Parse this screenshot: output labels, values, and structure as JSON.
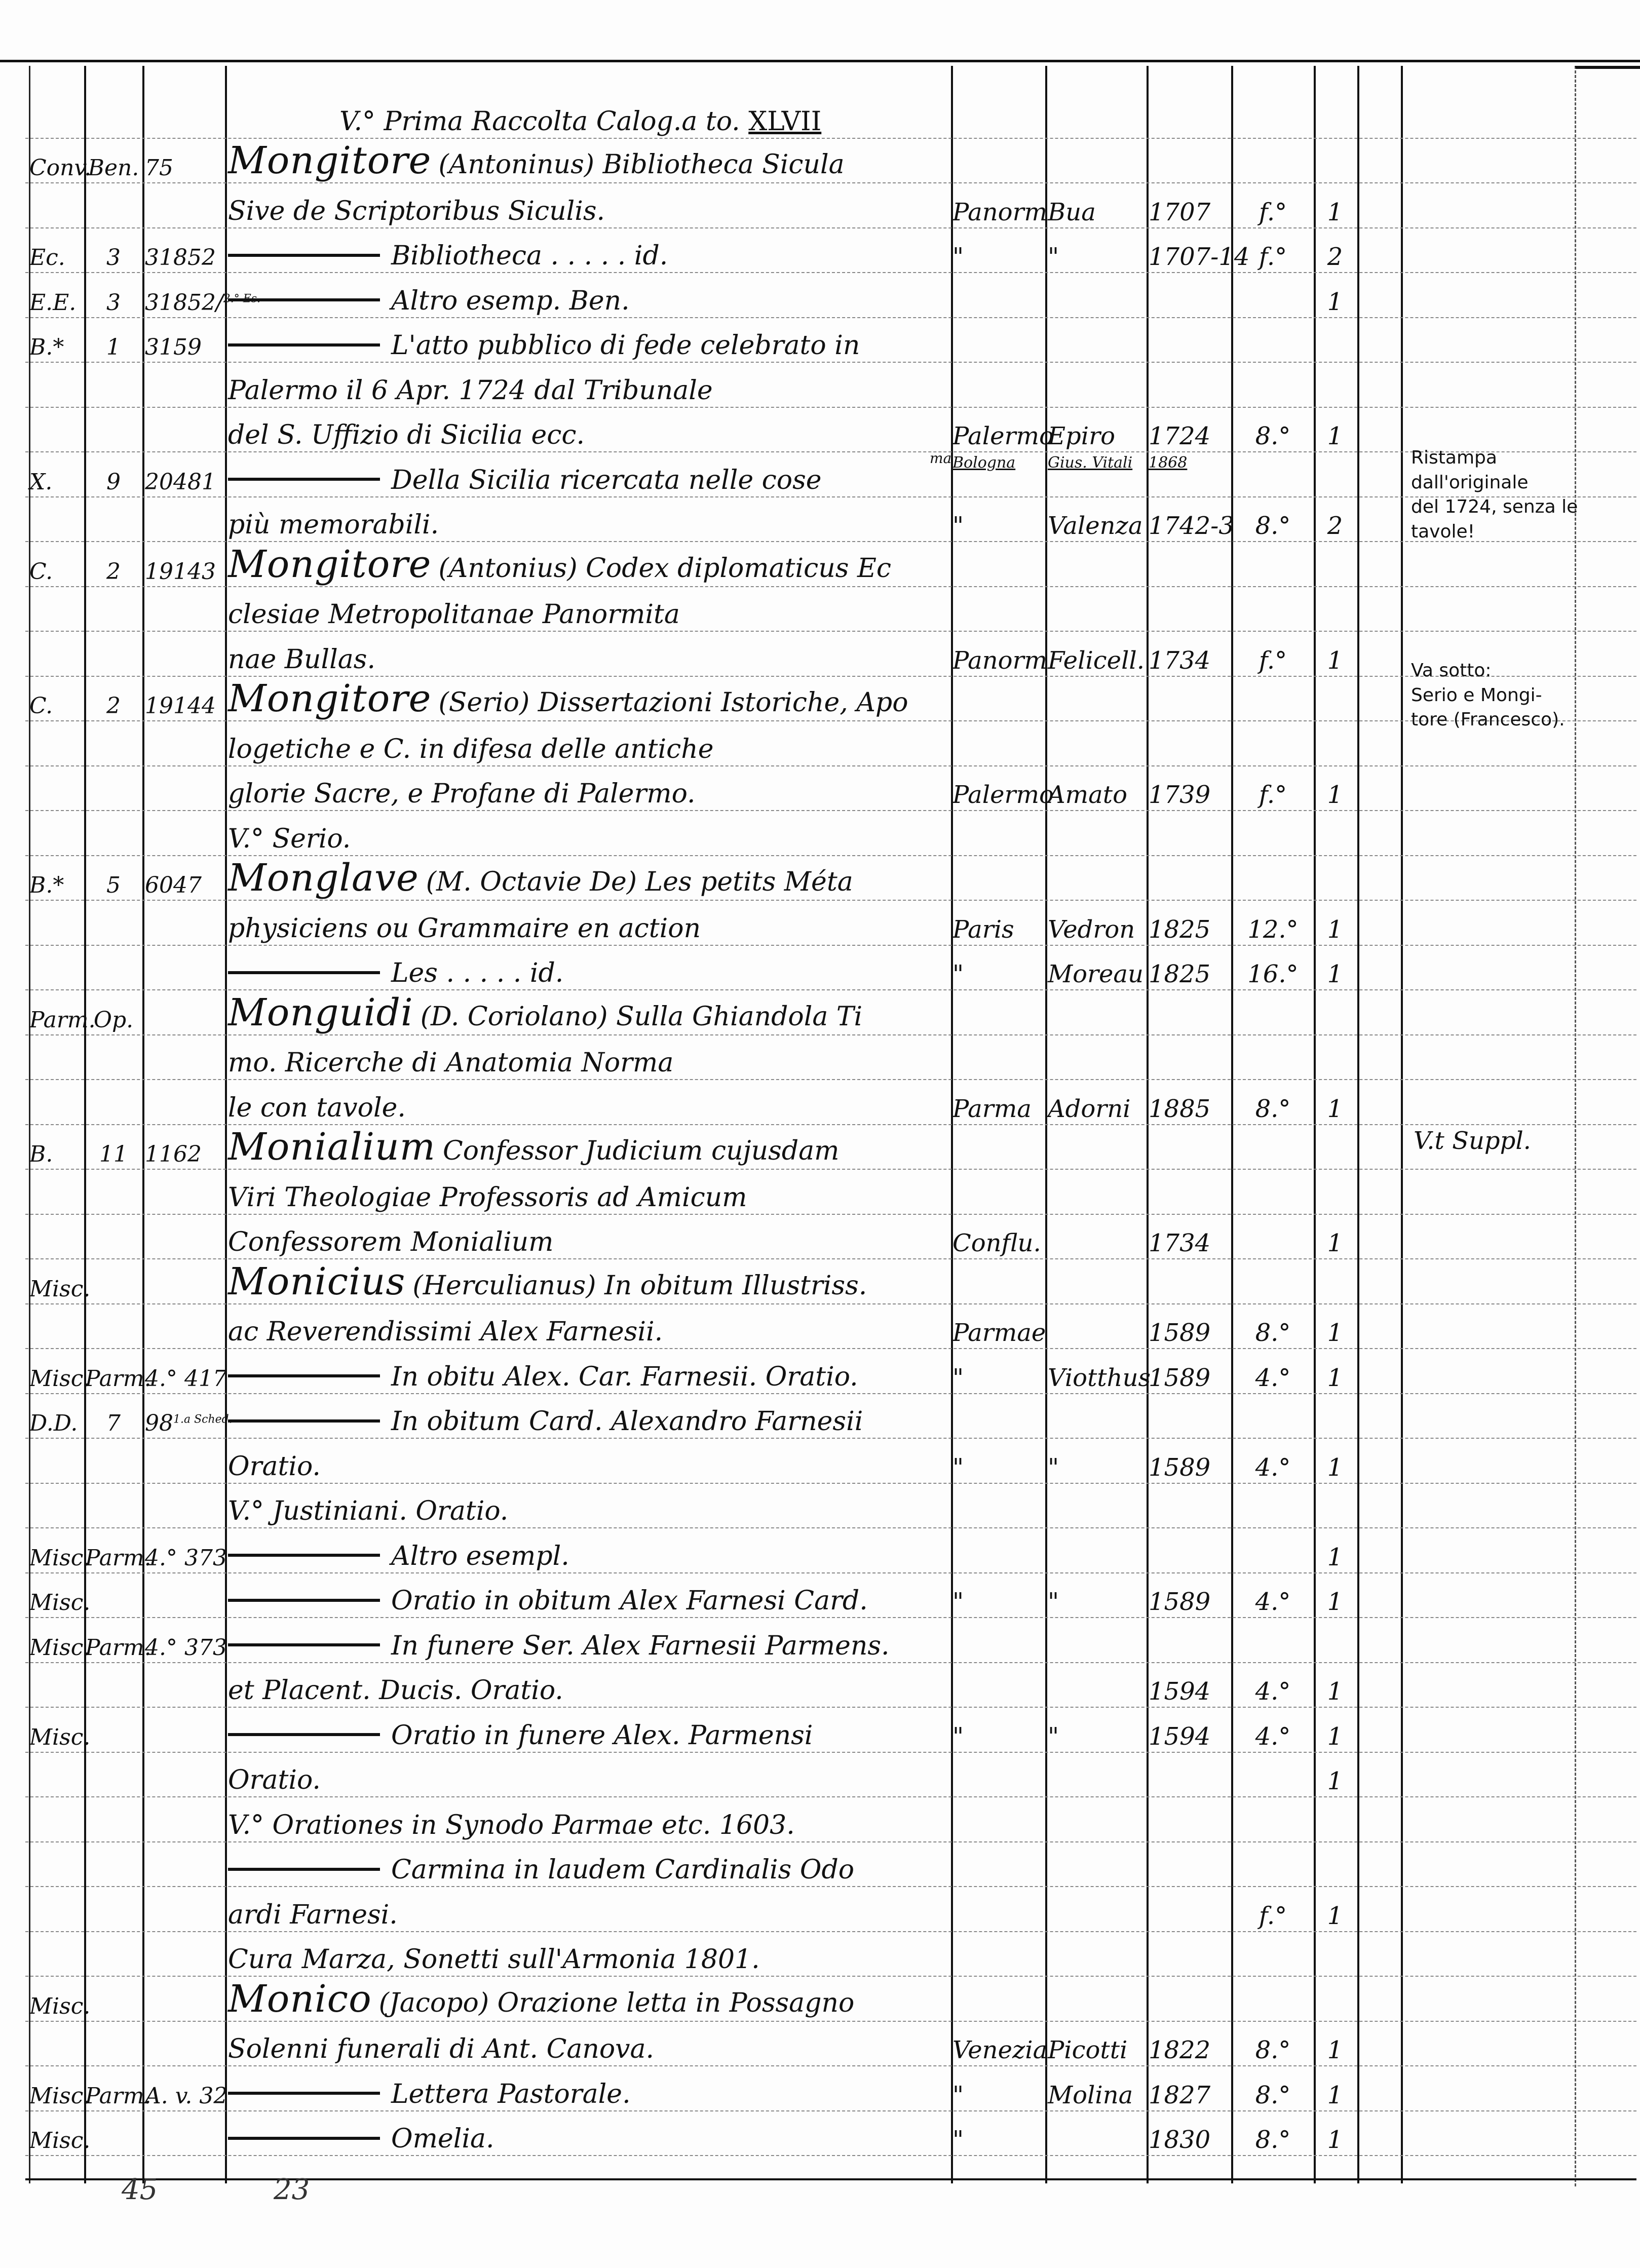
{
  "heading": {
    "text": "V.° Prima Raccolta Calog.a to.",
    "roman": "XLVII"
  },
  "rows": [
    {
      "coll": "Conv.",
      "shelf": "Ben.",
      "num": "75",
      "author": "Mongitore",
      "title": "(Antoninus) Bibliotheca Sicula"
    },
    {
      "title": "Sive de Scriptoribus Siculis.",
      "place": "Panorm",
      "printer": "Bua",
      "year": "1707",
      "fmt": "f.°",
      "vols": "1"
    },
    {
      "coll": "Ec.",
      "shelf": "3",
      "num": "31852",
      "dash": true,
      "title": "Bibliotheca . . . . . id.",
      "place": "\"",
      "printer": "\"",
      "year": "1707-14",
      "fmt": "f.°",
      "vols": "2"
    },
    {
      "coll": "E.E.",
      "shelf": "3",
      "num": "31852/",
      "num_sup": "2.° Es.",
      "dash": true,
      "title": "Altro esemp. Ben.",
      "vols": "1"
    },
    {
      "coll": "B.*",
      "shelf": "1",
      "num": "3159",
      "dash": true,
      "title": "L'atto pubblico di fede celebrato in"
    },
    {
      "title": "Palermo il 6 Apr. 1724 dal Tribunale"
    },
    {
      "title": "del S. Uffizio di Sicilia ecc.",
      "place": "Palermo",
      "place_pre": "ma",
      "place_alt": "Bologna",
      "printer": "Epiro",
      "printer_alt": "Gius. Vitali",
      "year": "1724",
      "year_alt": "1868",
      "fmt": "8.°",
      "vols": "1"
    },
    {
      "coll": "X.",
      "shelf": "9",
      "num": "20481",
      "dash": true,
      "title": "Della Sicilia ricercata nelle cose"
    },
    {
      "title": "più memorabili.",
      "place": "\"",
      "printer": "Valenza",
      "year": "1742-3",
      "fmt": "8.°",
      "vols": "2"
    },
    {
      "coll": "C.",
      "shelf": "2",
      "num": "19143",
      "author": "Mongitore",
      "title": "(Antonius) Codex diplomaticus Ec"
    },
    {
      "title": "clesiae Metropolitanae Panormita"
    },
    {
      "title": "nae Bullas.",
      "place": "Panorm",
      "printer": "Felicell.",
      "year": "1734",
      "fmt": "f.°",
      "vols": "1"
    },
    {
      "coll": "C.",
      "shelf": "2",
      "num": "19144",
      "author": "Mongitore",
      "title": "(Serio) Dissertazioni Istoriche, Apo"
    },
    {
      "title": "logetiche e C. in difesa delle antiche"
    },
    {
      "title": "glorie Sacre, e Profane di Palermo.",
      "place": "Palermo",
      "printer": "Amato",
      "year": "1739",
      "fmt": "f.°",
      "vols": "1"
    },
    {
      "title": "V.° Serio."
    },
    {
      "coll": "B.*",
      "shelf": "5",
      "num": "6047",
      "author": "Monglave",
      "title": "(M. Octavie De) Les petits Méta"
    },
    {
      "title": "physiciens ou Grammaire en action",
      "place": "Paris",
      "printer": "Vedron",
      "year": "1825",
      "fmt": "12.°",
      "vols": "1"
    },
    {
      "dash": true,
      "title": "Les . . . . . id.",
      "place": "\"",
      "printer": "Moreau",
      "year": "1825",
      "fmt": "16.°",
      "vols": "1"
    },
    {
      "coll": "Parm.",
      "shelf": "Op.",
      "author": "Monguidi",
      "title": "(D. Coriolano) Sulla Ghiandola Ti"
    },
    {
      "title": "mo. Ricerche di Anatomia Norma"
    },
    {
      "title": "le con tavole.",
      "place": "Parma",
      "printer": "Adorni",
      "year": "1885",
      "fmt": "8.°",
      "vols": "1"
    },
    {
      "coll": "B.",
      "shelf": "11",
      "num": "1162",
      "author": "Monialium",
      "title": "Confessor Judicium cujusdam"
    },
    {
      "title": "Viri Theologiae Professoris ad Amicum"
    },
    {
      "title": "Confessorem Monialium",
      "place": "Conflu.",
      "year": "1734",
      "vols": "1"
    },
    {
      "coll": "Misc.",
      "author": "Monicius",
      "title": "(Herculianus) In obitum Illustriss."
    },
    {
      "title": "ac Reverendissimi Alex Farnesii.",
      "place": "Parmae",
      "year": "1589",
      "fmt": "8.°",
      "vols": "1"
    },
    {
      "coll": "Misc.",
      "shelf": "Parm.",
      "num": "4.° 417",
      "dash": true,
      "title": "In obitu Alex. Car. Farnesii. Oratio.",
      "place": "\"",
      "printer": "Viotthus",
      "year": "1589",
      "fmt": "4.°",
      "vols": "1"
    },
    {
      "coll": "D.D.",
      "shelf": "7",
      "num": "98",
      "num_sup": "1.a Sched.",
      "dash": true,
      "title": "In obitum Card. Alexandro Farnesii"
    },
    {
      "title": "Oratio.",
      "place": "\"",
      "printer": "\"",
      "year": "1589",
      "fmt": "4.°",
      "vols": "1"
    },
    {
      "title": "V.° Justiniani. Oratio."
    },
    {
      "coll": "Misc.",
      "shelf": "Parm.",
      "num": "4.° 373",
      "dash": true,
      "title": "Altro esempl.",
      "vols": "1"
    },
    {
      "coll": "Misc.",
      "dash": true,
      "title": "Oratio in obitum Alex Farnesi Card.",
      "place": "\"",
      "printer": "\"",
      "year": "1589",
      "fmt": "4.°",
      "vols": "1"
    },
    {
      "coll": "Misc.",
      "shelf": "Parm.",
      "num": "4.° 373",
      "dash": true,
      "title": "In funere Ser. Alex Farnesii Parmens."
    },
    {
      "title": "et Placent. Ducis. Oratio.",
      "year": "1594",
      "fmt": "4.°",
      "vols": "1"
    },
    {
      "coll": "Misc.",
      "dash": true,
      "title": "Oratio in funere Alex. Parmensi",
      "place": "\"",
      "printer": "\"",
      "year": "1594",
      "fmt": "4.°",
      "vols": "1"
    },
    {
      "title": "Oratio.",
      "vols": "1"
    },
    {
      "title": "V.° Orationes in Synodo Parmae etc. 1603."
    },
    {
      "dash": true,
      "title": "Carmina in laudem Cardinalis Odo"
    },
    {
      "title": "ardi Farnesi.",
      "fmt": "f.°",
      "vols": "1"
    },
    {
      "title": "Cura Marza, Sonetti sull'Armonia 1801."
    },
    {
      "coll": "Misc.",
      "author": "Monico",
      "title": "(Jacopo) Orazione letta in Possagno"
    },
    {
      "title": "Solenni funerali di Ant. Canova.",
      "place": "Venezia",
      "printer": "Picotti",
      "year": "1822",
      "fmt": "8.°",
      "vols": "1"
    },
    {
      "coll": "Misc.",
      "shelf": "Parm.",
      "num": "A. v. 32",
      "dash": true,
      "title": "Lettera Pastorale.",
      "place": "\"",
      "printer": "Molina",
      "year": "1827",
      "fmt": "8.°",
      "vols": "1"
    },
    {
      "coll": "Misc.",
      "dash": true,
      "title": "Omelia.",
      "place": "\"",
      "year": "1830",
      "fmt": "8.°",
      "vols": "1"
    }
  ],
  "notes": [
    {
      "text": "Ristampa\ndall'originale\ndel 1724, senza le\ntavole!"
    },
    {
      "text": "Va sotto:\nSerio e Mongi-\ntore (Francesco)."
    },
    {
      "text": "V.t Suppl."
    }
  ],
  "footer": {
    "left": "45",
    "right": "23"
  }
}
